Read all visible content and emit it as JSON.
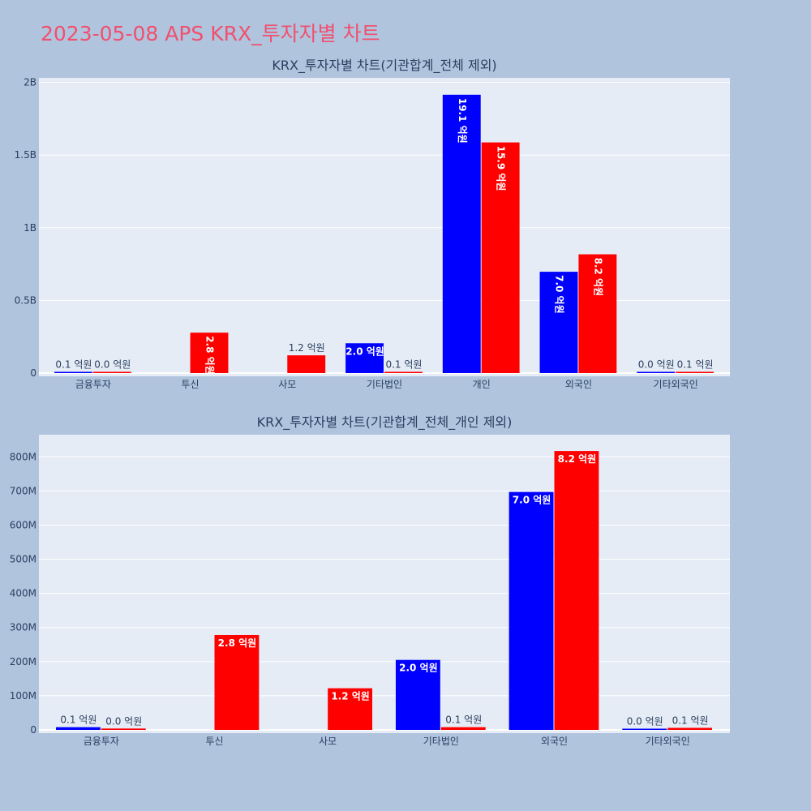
{
  "page_title": "2023-05-08 APS KRX_투자자별 차트",
  "colors": {
    "buy": "#0000ff",
    "sell": "#ff0000",
    "plot_bg": "#e5ecf6",
    "page_bg": "#b0c4de",
    "title": "#f0506e"
  },
  "chart_data": [
    {
      "type": "bar",
      "title": "KRX_투자자별 차트(기관합계_전체 제외)",
      "categories": [
        "금융투자",
        "투신",
        "사모",
        "기타법인",
        "개인",
        "외국인",
        "기타외국인"
      ],
      "ylim": [
        0,
        2020000000
      ],
      "y_ticks": [
        0,
        500000000,
        1000000000,
        1500000000,
        2000000000
      ],
      "y_tick_labels": [
        "0",
        "0.5B",
        "1B",
        "1.5B",
        "2B"
      ],
      "grid": true,
      "legend": "none",
      "series": [
        {
          "values": [
            8000000,
            0,
            0,
            205000000,
            1915000000,
            697000000,
            3000000
          ],
          "labels": [
            "0.1 억원",
            "",
            "",
            "2.0 억원",
            "19.1 억원",
            "7.0 억원",
            "0.0 억원"
          ],
          "label_vertical": [
            false,
            false,
            false,
            false,
            true,
            true,
            false
          ]
        },
        {
          "values": [
            4000000,
            278000000,
            122000000,
            8000000,
            1587000000,
            817000000,
            6000000
          ],
          "labels": [
            "0.0 억원",
            "2.8 억원",
            "1.2 억원",
            "0.1 억원",
            "15.9 억원",
            "8.2 억원",
            "0.1 억원"
          ],
          "label_vertical": [
            false,
            true,
            false,
            false,
            true,
            true,
            false
          ]
        }
      ]
    },
    {
      "type": "bar",
      "title": "KRX_투자자별 차트(기관합계_전체_개인 제외)",
      "categories": [
        "금융투자",
        "투신",
        "사모",
        "기타법인",
        "외국인",
        "기타외국인"
      ],
      "ylim": [
        0,
        860000000
      ],
      "y_ticks": [
        0,
        100000000,
        200000000,
        300000000,
        400000000,
        500000000,
        600000000,
        700000000,
        800000000
      ],
      "y_tick_labels": [
        "0",
        "100M",
        "200M",
        "300M",
        "400M",
        "500M",
        "600M",
        "700M",
        "800M"
      ],
      "grid": true,
      "legend": "none",
      "series": [
        {
          "values": [
            8000000,
            0,
            0,
            205000000,
            697000000,
            3000000
          ],
          "labels": [
            "0.1 억원",
            "",
            "",
            "2.0 억원",
            "7.0 억원",
            "0.0 억원"
          ],
          "label_vertical": [
            false,
            false,
            false,
            false,
            false,
            false
          ]
        },
        {
          "values": [
            4000000,
            278000000,
            122000000,
            8000000,
            817000000,
            6000000
          ],
          "labels": [
            "0.0 억원",
            "2.8 억원",
            "1.2 억원",
            "0.1 억원",
            "8.2 억원",
            "0.1 억원"
          ],
          "label_vertical": [
            false,
            false,
            false,
            false,
            false,
            false
          ]
        }
      ]
    }
  ]
}
